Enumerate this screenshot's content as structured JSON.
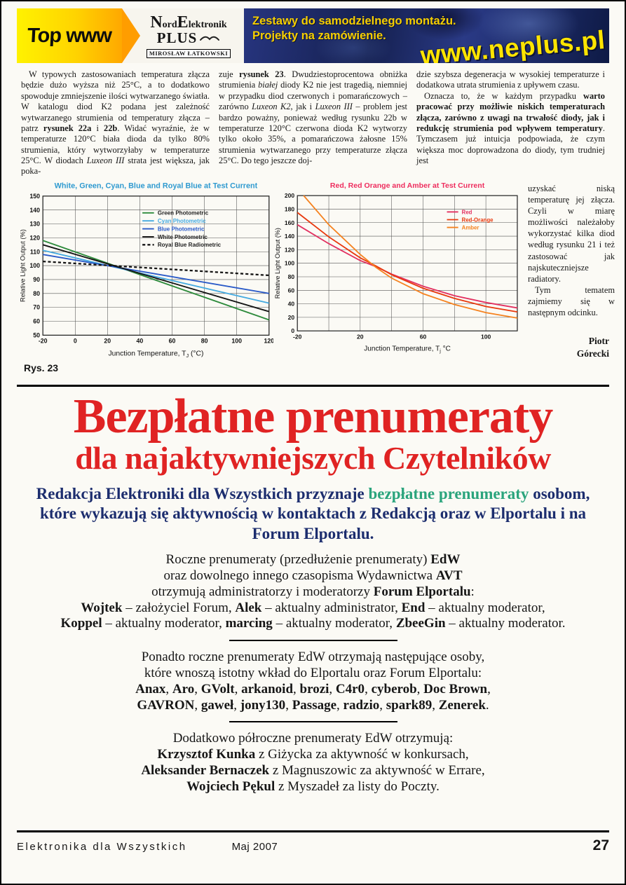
{
  "colors": {
    "banner_yellow": "#ffd400",
    "banner_blue": "#15204f",
    "heading_red": "#e02323",
    "intro_navy": "#1c2d6e",
    "intro_green": "#2aa47c"
  },
  "banner": {
    "top_www": "Top www",
    "logo_parts": [
      "N",
      "ord",
      "E",
      "lektronik"
    ],
    "logo_plus": "PLUS",
    "logo_owner": "MIROSŁAW ŁATKOWSKI",
    "tagline_line1": "Zestawy do samodzielnego montażu.",
    "tagline_line2": "Projekty na zamówienie.",
    "url": "www.neplus.pl"
  },
  "article": {
    "col1": "W typowych zastosowaniach temperatura złącza będzie dużo wyższa niż 25°C, a to dodatkowo spowoduje zmniejszenie ilości wytwarzanego światła. W katalogu diod K2 podana jest zależność wytwarzanego strumienia od temperatury złącza – patrz **rysunek 22a** i **22b**. Widać wyraźnie, że w temperaturze 120°C biała dioda da tylko 80% strumienia, który wytworzyłaby w temperaturze 25°C. W diodach *Luxeon III* strata jest większa, jak poka-",
    "col2": "zuje **rysunek 23**. Dwudziestoprocentowa obniżka strumienia *białej* diody K2 nie jest tragedią, niemniej w przypadku diod czerwonych i pomarańczowych – zarówno *Luxeon K2*, jak i *Luxeon III* – problem jest bardzo poważny, ponieważ według rysunku 22b w temperaturze 120°C czerwona dioda K2 wytworzy tylko około 35%, a pomarańczowa żałosne 15% strumienia wytwarzanego przy temperaturze złącza 25°C. Do tego jeszcze doj-",
    "col3_para1": "dzie szybsza degeneracja w wysokiej temperaturze i dodatkowa utrata strumienia z upływem czasu.",
    "col3_para2": "Oznacza to, że w każdym przypadku **warto pracować przy możliwie niskich temperaturach złącza, zarówno z uwagi na trwałość diody, jak i redukcję strumienia pod wpływem temperatury**. Tymczasem już intuicja podpowiada, że czym większa moc doprowadzona do diody, tym trudniej jest",
    "col3_narrow1": "uzyskać niską temperaturę jej złącza. Czyli w miarę możliwości należałoby wykorzystać kilka diod według rysunku 21 i też zastosować jak najskuteczniejsze radiatory.",
    "col3_narrow2": "Tym tematem zajmiemy się w następnym odcinku.",
    "figure_label": "Rys. 23",
    "signature_line1": "Piotr",
    "signature_line2": "Górecki"
  },
  "chart_data": [
    {
      "type": "line",
      "title": "White, Green, Cyan, Blue and Royal Blue at Test Current",
      "title_color": "#2f9ad0",
      "xlabel": "Junction Temperature, T_J (°C)",
      "ylabel": "Relative Light Output (%)",
      "xlim": [
        -20,
        120
      ],
      "ylim": [
        50,
        150
      ],
      "xticks": [
        -20,
        0,
        20,
        40,
        60,
        80,
        100,
        120
      ],
      "yticks": [
        50,
        60,
        70,
        80,
        90,
        100,
        110,
        120,
        130,
        140,
        150
      ],
      "grid": true,
      "legend": {
        "x": 0.44,
        "y": 0.1
      },
      "series": [
        {
          "name": "Green Photometric",
          "color": "#2e8b3c",
          "label_color": "#222222",
          "points": [
            [
              -20,
              118
            ],
            [
              120,
              61
            ]
          ]
        },
        {
          "name": "Cyan Photometric",
          "color": "#45aae0",
          "label_color": "#45aae0",
          "points": [
            [
              -20,
              111
            ],
            [
              120,
              73
            ]
          ]
        },
        {
          "name": "Blue Photometric",
          "color": "#2a5ac8",
          "label_color": "#2a5ac8",
          "points": [
            [
              -20,
              108
            ],
            [
              120,
              80
            ]
          ]
        },
        {
          "name": "White Photometric",
          "color": "#141414",
          "label_color": "#222222",
          "points": [
            [
              -20,
              115
            ],
            [
              120,
              67
            ]
          ]
        },
        {
          "name": "Royal Blue Radiometric",
          "color": "#141414",
          "label_color": "#222222",
          "dash": "4,3",
          "width": 2.2,
          "points": [
            [
              -20,
              103
            ],
            [
              120,
              93
            ]
          ]
        }
      ]
    },
    {
      "type": "line",
      "title": "Red, Red Orange and Amber at Test Current",
      "title_color": "#ee2d5e",
      "xlabel": "Junction Temperature, T_j °C",
      "ylabel": "Relative Light Output (%)",
      "xlim": [
        -20,
        120
      ],
      "ylim": [
        0,
        200
      ],
      "xticks": [
        -20,
        0,
        20,
        40,
        60,
        80,
        100,
        120
      ],
      "xtick_labels": [
        "-20",
        "",
        "20",
        "",
        "60",
        "",
        "100",
        ""
      ],
      "yticks": [
        0,
        20,
        40,
        60,
        80,
        100,
        120,
        140,
        160,
        180,
        200
      ],
      "grid": true,
      "legend": {
        "x": 0.68,
        "y": 0.1
      },
      "series": [
        {
          "name": "Red",
          "color": "#e23060",
          "label_color": "#e23060",
          "points": [
            [
              -20,
              157
            ],
            [
              0,
              129
            ],
            [
              20,
              104
            ],
            [
              30,
              95
            ],
            [
              40,
              84
            ],
            [
              60,
              66
            ],
            [
              80,
              52
            ],
            [
              100,
              42
            ],
            [
              120,
              34
            ]
          ]
        },
        {
          "name": "Red-Orange",
          "color": "#e8380d",
          "label_color": "#e8380d",
          "points": [
            [
              -20,
              175
            ],
            [
              0,
              139
            ],
            [
              20,
              108
            ],
            [
              30,
              96
            ],
            [
              40,
              83
            ],
            [
              60,
              63
            ],
            [
              80,
              48
            ],
            [
              100,
              36
            ],
            [
              120,
              28
            ]
          ]
        },
        {
          "name": "Amber",
          "color": "#f5821f",
          "label_color": "#f5821f",
          "points": [
            [
              -16,
              200
            ],
            [
              0,
              157
            ],
            [
              20,
              113
            ],
            [
              30,
              94
            ],
            [
              40,
              78
            ],
            [
              60,
              55
            ],
            [
              80,
              39
            ],
            [
              100,
              27
            ],
            [
              120,
              19
            ]
          ]
        }
      ]
    }
  ],
  "promo": {
    "title_line1": "Bezpłatne prenumeraty",
    "title_line2": "dla najaktywniejszych Czytelników",
    "intro_pre": "Redakcja Elektroniki dla Wszystkich przyznaje ",
    "intro_highlight": "bezpłatne prenumeraty",
    "intro_post": " osobom, które wykazują się aktywnością w kontaktach z Redakcją oraz w Elportalu i na Forum Elportalu.",
    "blocks": [
      {
        "lines": [
          "Roczne prenumeraty (przedłużenie prenumeraty) **EdW**",
          "oraz dowolnego innego czasopisma Wydawnictwa **AVT**",
          "otrzymują administratorzy i moderatorzy **Forum Elportalu**:",
          "**Wojtek** – założyciel Forum, **Alek** – aktualny administrator, **End** – aktualny moderator,",
          "**Koppel** – aktualny moderator, **marcing** – aktualny moderator, **ZbeeGin** – aktualny moderator."
        ]
      },
      {
        "lines": [
          "Ponadto roczne prenumeraty EdW otrzymają następujące osoby,",
          "które wnoszą istotny wkład do Elportalu oraz Forum Elportalu:",
          "**Anax**, **Aro**, **GVolt**, **arkanoid**, **brozi**, **C4r0**, **cyberob**, **Doc Brown**,",
          "**GAVRON**, **gaweł**, **jony130**, **Passage**, **radzio**, **spark89**, **Zenerek**."
        ]
      },
      {
        "lines": [
          "Dodatkowo półroczne prenumeraty EdW otrzymują:",
          "**Krzysztof Kunka** z Giżycka za aktywność w konkursach,",
          "**Aleksander Bernaczek** z Magnuszowic za aktywność w Errare,",
          "**Wojciech Pękul** z Myszadeł za listy do Poczty."
        ]
      }
    ]
  },
  "footer": {
    "magazine": "Elektronika dla Wszystkich",
    "issue": "Maj 2007",
    "page_number": "27"
  }
}
